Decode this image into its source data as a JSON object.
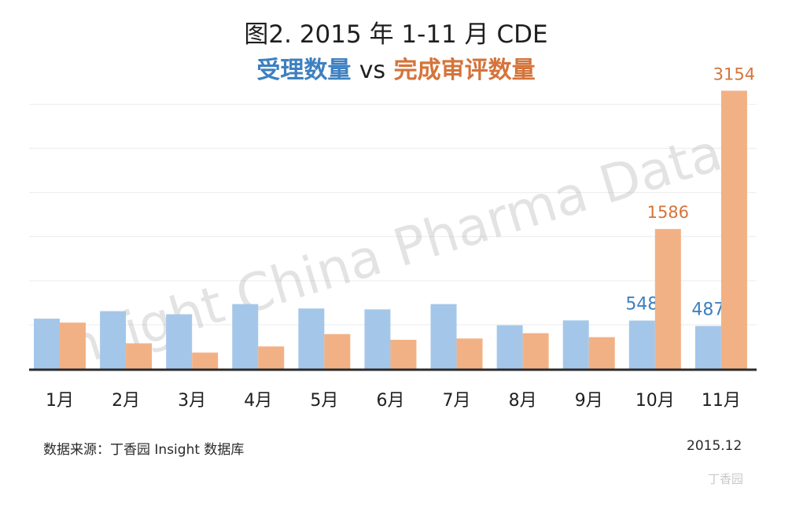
{
  "title_line1": "图2. 2015 年 1-11 月 CDE",
  "title_series1": "受理数量",
  "title_vs": "vs",
  "title_series2": "完成审评数量",
  "source_text": "数据来源：丁香园 Insight 数据库",
  "date_text": "2015.12",
  "watermark_text": "Insight China Pharma Data",
  "site_logo_text": "丁香园",
  "colors": {
    "series1": "#a4c7e9",
    "series2": "#f2b185",
    "label1": "#3d80c0",
    "label2": "#d4743b",
    "grid": "#ececec",
    "baseline": "#2b2b2b"
  },
  "chart_data": {
    "type": "bar",
    "categories": [
      "1月",
      "2月",
      "3月",
      "4月",
      "5月",
      "6月",
      "7月",
      "8月",
      "9月",
      "10月",
      "11月"
    ],
    "series": [
      {
        "name": "受理数量",
        "values": [
          570,
          655,
          620,
          735,
          685,
          675,
          735,
          495,
          550,
          548,
          487
        ],
        "data_labels": [
          null,
          null,
          null,
          null,
          null,
          null,
          null,
          null,
          null,
          "548",
          "487"
        ]
      },
      {
        "name": "完成审评数量",
        "values": [
          525,
          290,
          185,
          255,
          395,
          330,
          345,
          405,
          360,
          1586,
          3154
        ],
        "data_labels": [
          null,
          null,
          null,
          null,
          null,
          null,
          null,
          null,
          null,
          "1586",
          "3154"
        ]
      }
    ],
    "ylim": [
      0,
      3050
    ],
    "gridlines": [
      0,
      500,
      1000,
      1500,
      2000,
      2500,
      3000
    ],
    "grid": true,
    "legend": "in title",
    "title": "图2. 2015 年 1-11 月 CDE",
    "subtitle": "受理数量 vs 完成审评数量",
    "xlabel": "",
    "ylabel": ""
  }
}
